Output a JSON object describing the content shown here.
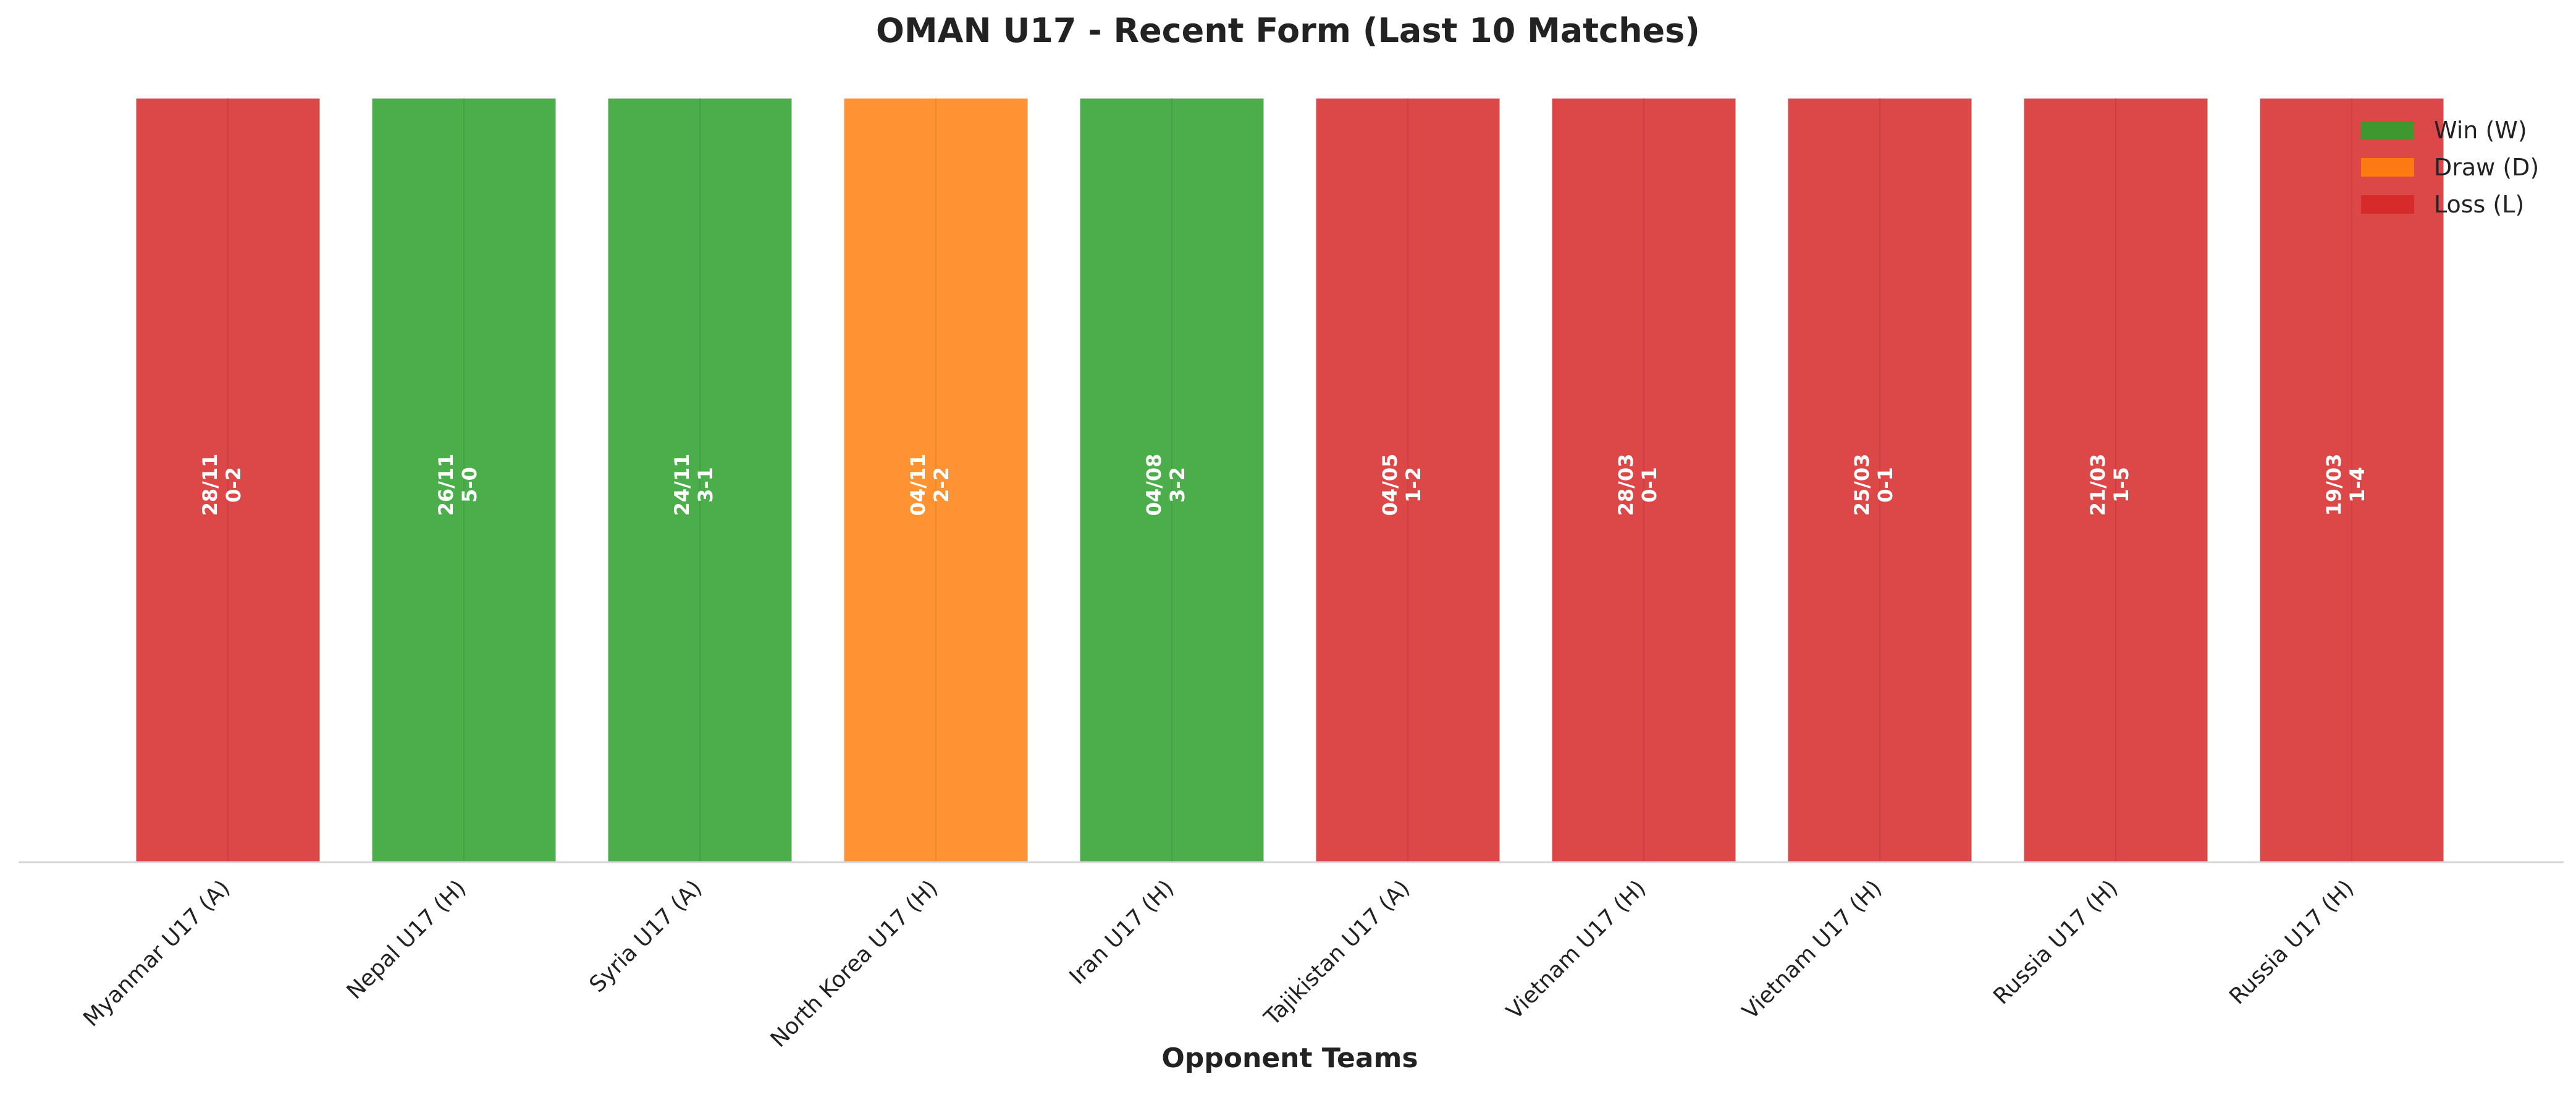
{
  "chart_data": {
    "type": "bar",
    "title": "OMAN U17 - Recent Form (Last 10 Matches)",
    "xlabel": "Opponent Teams",
    "ylabel": "",
    "ylim": [
      0,
      1
    ],
    "grid": false,
    "legend_position": "top-right",
    "categories": [
      "Myanmar U17 (A)",
      "Nepal U17 (H)",
      "Syria U17 (A)",
      "North Korea U17 (H)",
      "Iran U17 (H)",
      "Tajikistan U17 (A)",
      "Vietnam U17 (H)",
      "Vietnam U17 (H)",
      "Russia U17 (H)",
      "Russia U17 (H)"
    ],
    "values": [
      1,
      1,
      1,
      1,
      1,
      1,
      1,
      1,
      1,
      1
    ],
    "results": [
      "L",
      "W",
      "W",
      "D",
      "W",
      "L",
      "L",
      "L",
      "L",
      "L"
    ],
    "dates": [
      "28/11",
      "26/11",
      "24/11",
      "04/11",
      "04/08",
      "04/05",
      "28/03",
      "25/03",
      "21/03",
      "19/03"
    ],
    "scores": [
      "0-2",
      "5-0",
      "3-1",
      "2-2",
      "3-2",
      "1-2",
      "0-1",
      "0-1",
      "1-5",
      "1-4"
    ],
    "legend": [
      {
        "key": "W",
        "label": "Win (W)",
        "color": "#2ca02c"
      },
      {
        "key": "D",
        "label": "Draw (D)",
        "color": "#ff7f0e"
      },
      {
        "key": "L",
        "label": "Loss (L)",
        "color": "#d62728"
      }
    ]
  }
}
